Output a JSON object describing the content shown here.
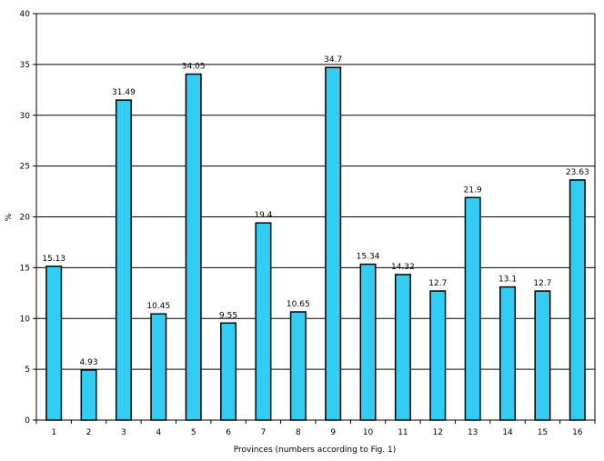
{
  "chart_data": {
    "type": "bar",
    "title": "",
    "xlabel": "Provinces (numbers according to Fig. 1)",
    "ylabel": "%",
    "categories": [
      "1",
      "2",
      "3",
      "4",
      "5",
      "6",
      "7",
      "8",
      "9",
      "10",
      "11",
      "12",
      "13",
      "14",
      "15",
      "16"
    ],
    "series": [
      {
        "values": [
          15.13,
          4.93,
          31.49,
          10.45,
          34.05,
          9.55,
          19.4,
          10.65,
          34.7,
          15.34,
          14.32,
          12.7,
          21.9,
          13.1,
          12.7,
          23.63
        ],
        "labels": [
          "15.13",
          "4.93",
          "31.49",
          "10.45",
          "34.05",
          "9.55",
          "19.4",
          "10.65",
          "34.7",
          "15.34",
          "14.32",
          "12.7",
          "21.9",
          "13.1",
          "12.7",
          "23.63"
        ]
      }
    ],
    "ylim": [
      0,
      40
    ],
    "yticks": [
      "0",
      "5",
      "10",
      "15",
      "20",
      "25",
      "30",
      "35",
      "40"
    ],
    "grid": true,
    "legend": "none",
    "colors": {
      "bar": "#33CCF2",
      "bar_edge": "#000000",
      "grid": "#000000"
    }
  }
}
